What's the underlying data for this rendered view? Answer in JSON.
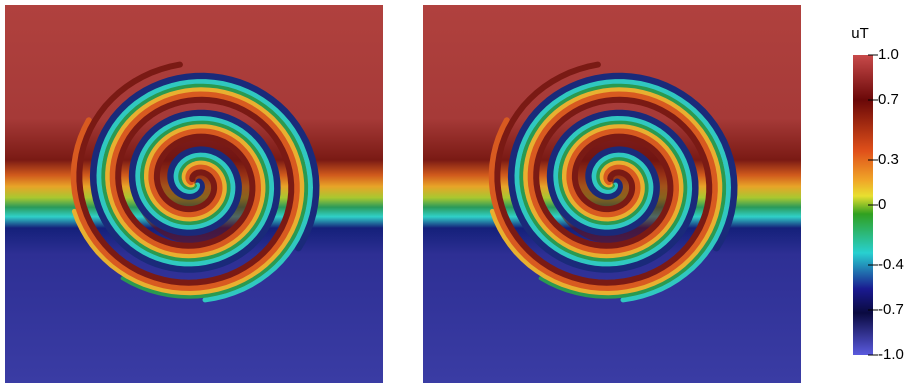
{
  "colorbar": {
    "title": "uT",
    "range": [
      -1,
      1
    ],
    "ticks": [
      {
        "value": 1,
        "label": "1.0"
      },
      0.7,
      0.3,
      0,
      -0.4,
      -0.7,
      {
        "value": -1,
        "label": "-1.0"
      }
    ]
  }
}
